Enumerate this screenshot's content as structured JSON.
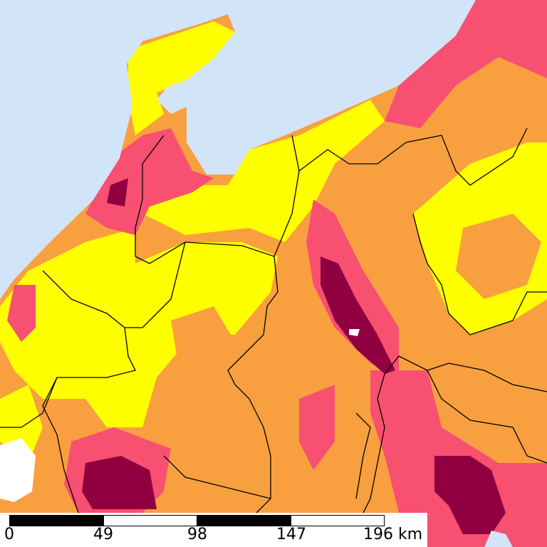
{
  "colors": {
    "sea": "#d2e4f8",
    "low": "#ffff00",
    "medium": "#f8a040",
    "high": "#f85070",
    "very_high": "#900040",
    "lake": "#ffffff",
    "boundary": "#000000"
  },
  "scale_bar": {
    "labels": [
      "0",
      "49",
      "98",
      "147",
      "196 km"
    ]
  }
}
